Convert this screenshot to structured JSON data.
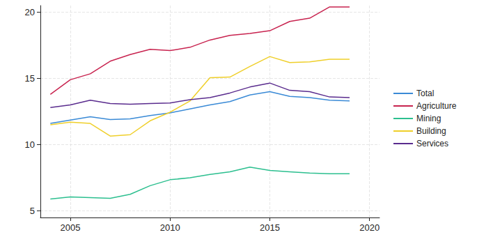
{
  "chart_data": {
    "type": "line",
    "x": [
      2004,
      2005,
      2006,
      2007,
      2008,
      2009,
      2010,
      2011,
      2012,
      2013,
      2014,
      2015,
      2016,
      2017,
      2018,
      2019
    ],
    "series": [
      {
        "name": "Total",
        "color": "#3a8ad6",
        "values": [
          11.6,
          11.85,
          12.1,
          11.9,
          11.95,
          12.2,
          12.4,
          12.7,
          13.0,
          13.25,
          13.75,
          14.0,
          13.65,
          13.55,
          13.35,
          13.3
        ]
      },
      {
        "name": "Agriculture",
        "color": "#c8234f",
        "values": [
          13.8,
          14.9,
          15.35,
          16.3,
          16.8,
          17.2,
          17.1,
          17.35,
          17.9,
          18.25,
          18.4,
          18.6,
          19.3,
          19.55,
          20.4,
          20.4
        ]
      },
      {
        "name": "Mining",
        "color": "#2cbf8f",
        "values": [
          5.9,
          6.05,
          6.0,
          5.95,
          6.25,
          6.9,
          7.35,
          7.5,
          7.75,
          7.95,
          8.3,
          8.05,
          7.95,
          7.85,
          7.8,
          7.8
        ]
      },
      {
        "name": "Building",
        "color": "#efcf2a",
        "values": [
          11.5,
          11.7,
          11.6,
          10.65,
          10.75,
          11.8,
          12.45,
          13.3,
          15.05,
          15.1,
          15.9,
          16.65,
          16.2,
          16.25,
          16.45,
          16.45
        ]
      },
      {
        "name": "Services",
        "color": "#5a2c8e",
        "values": [
          12.8,
          13.0,
          13.35,
          13.1,
          13.05,
          13.1,
          13.15,
          13.4,
          13.55,
          13.9,
          14.35,
          14.65,
          14.1,
          14.0,
          13.6,
          13.55
        ]
      }
    ],
    "xlim": [
      2003.5,
      2020.5
    ],
    "xticks": [
      2005,
      2010,
      2015,
      2020
    ],
    "ylim": [
      4.5,
      20.5
    ],
    "yticks": [
      5,
      10,
      15,
      20
    ],
    "grid": true,
    "legend": "right"
  }
}
